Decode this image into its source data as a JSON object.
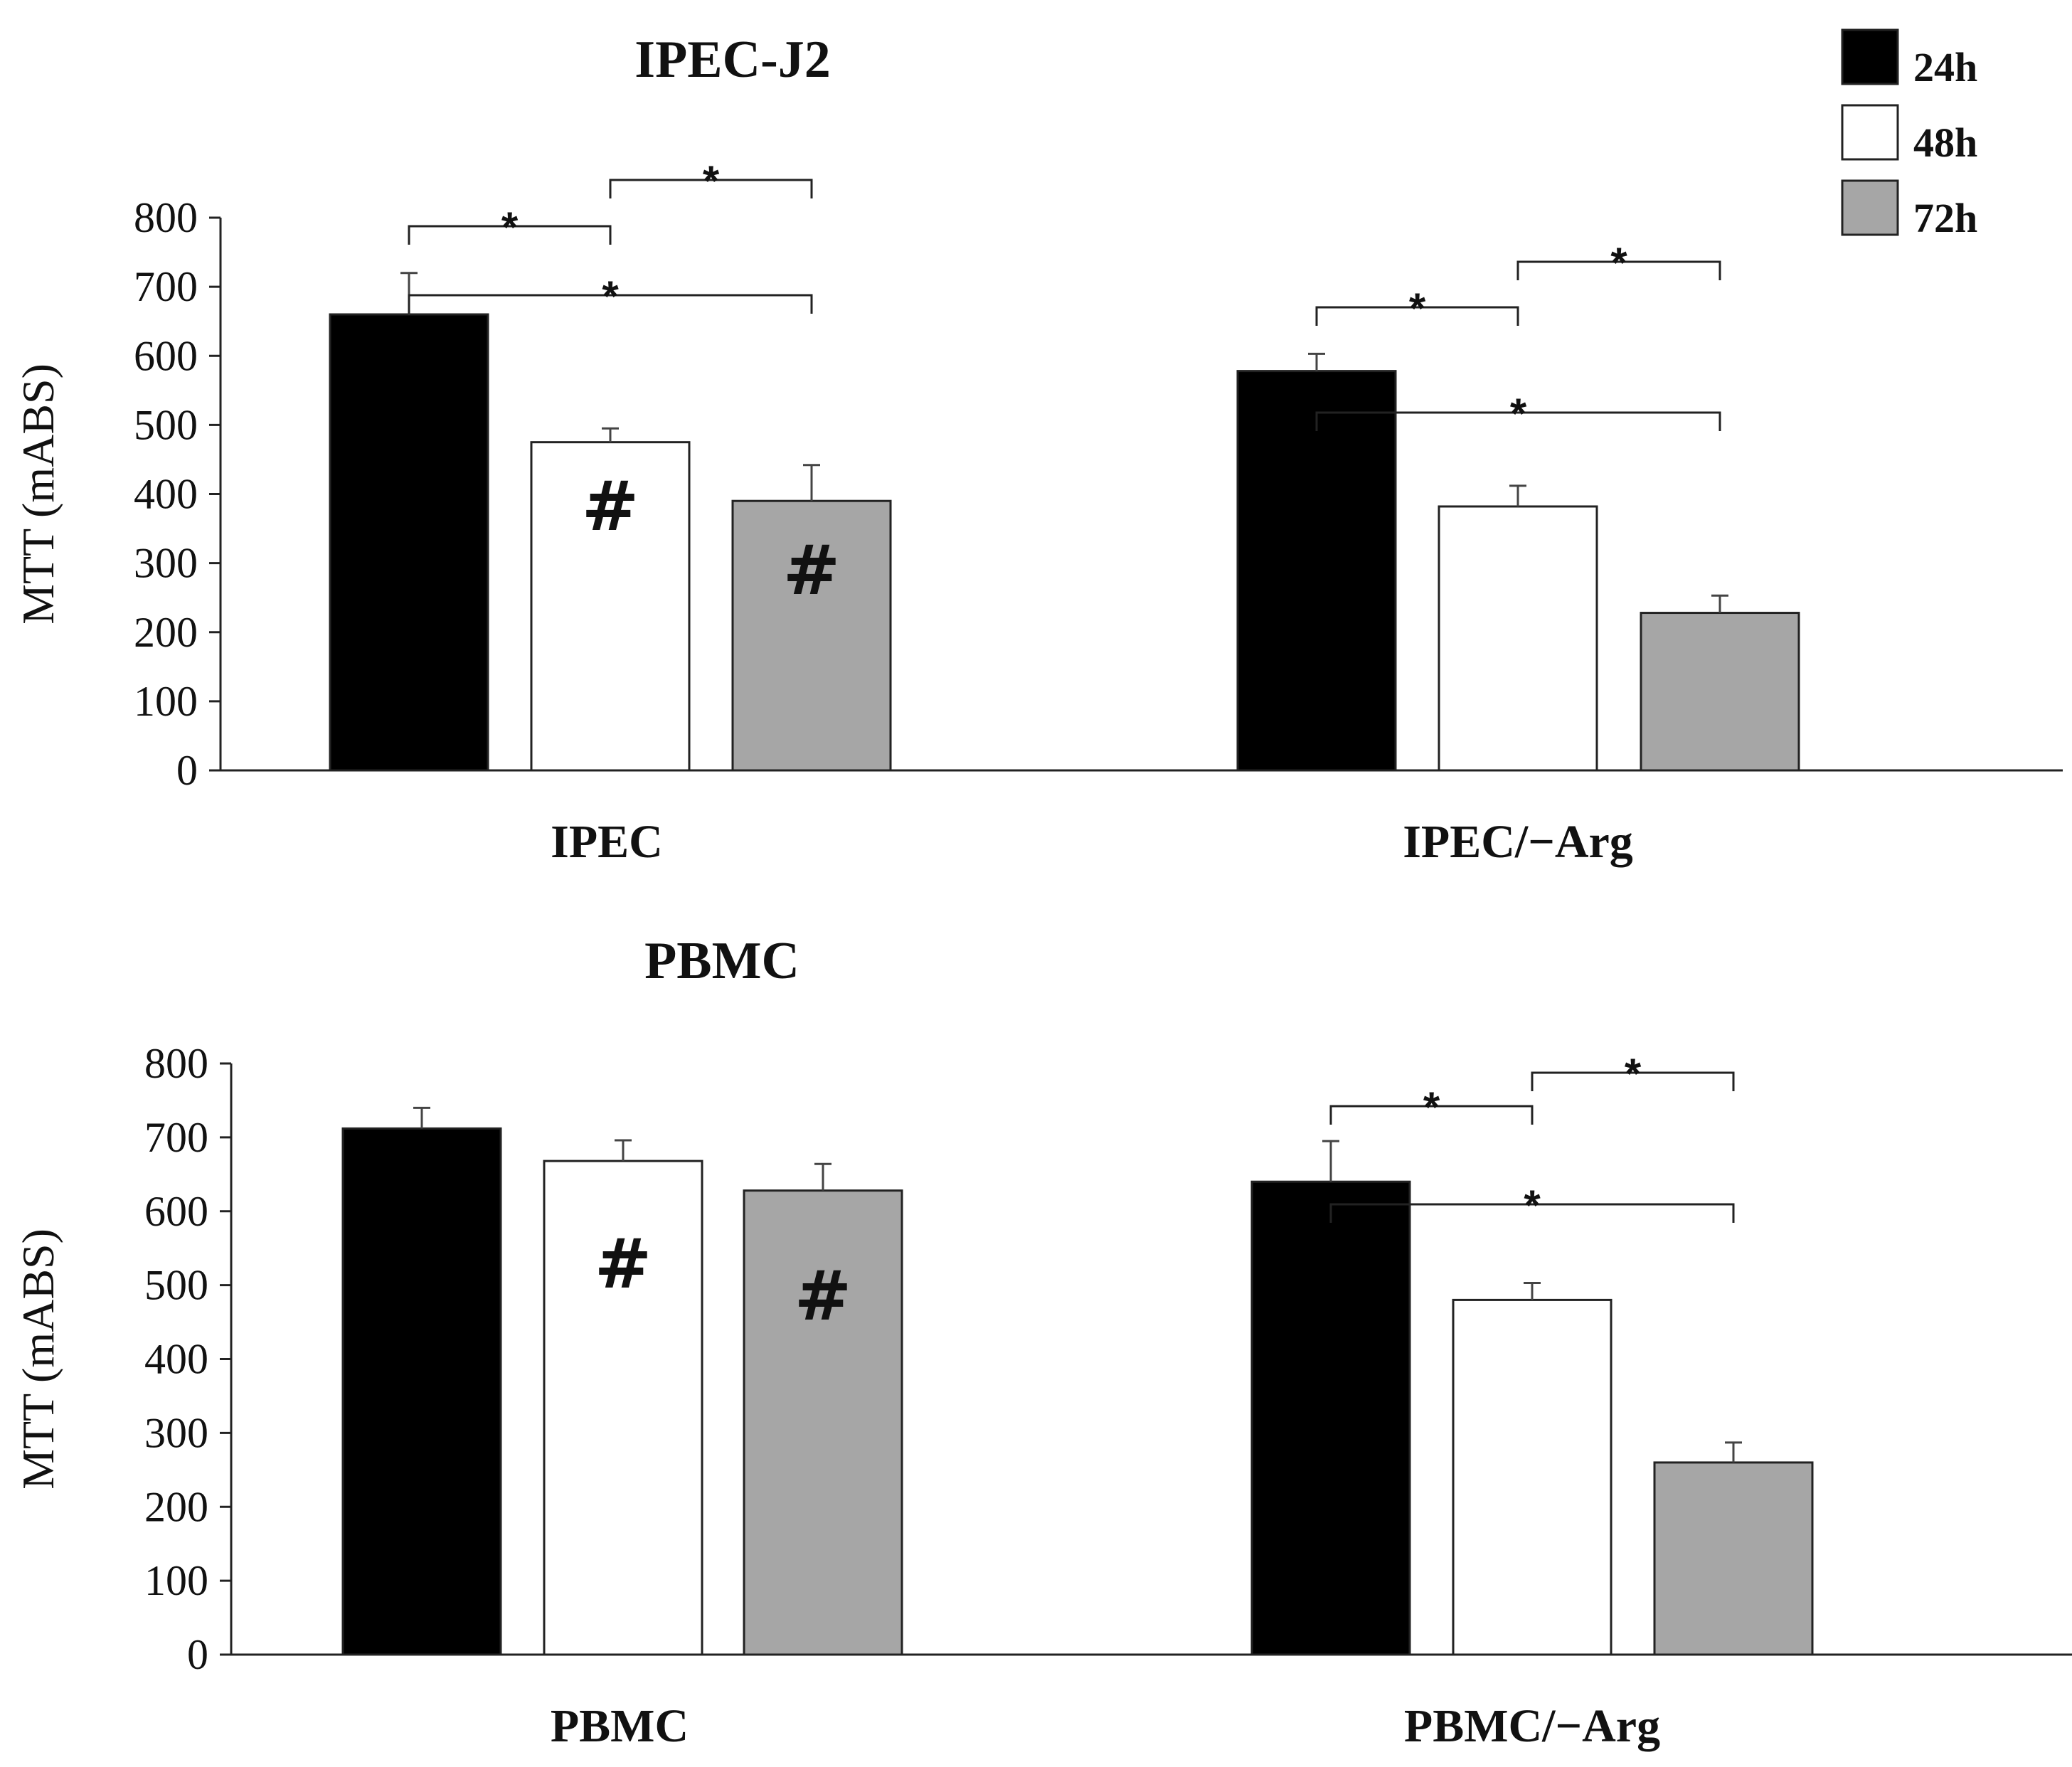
{
  "legend": [
    {
      "label": "24h",
      "color": "#000000"
    },
    {
      "label": "48h",
      "color": "#ffffff"
    },
    {
      "label": "72h",
      "color": "#a6a6a6"
    }
  ],
  "chart_data": [
    {
      "type": "bar",
      "title": "IPEC-J2",
      "ylabel": "MTT (mABS)",
      "xlabel": "",
      "ylim": [
        0,
        800
      ],
      "yticks": [
        0,
        100,
        200,
        300,
        400,
        500,
        600,
        700,
        800
      ],
      "categories": [
        "IPEC",
        "IPEC/−Arg"
      ],
      "series": [
        {
          "name": "24h",
          "color": "#000000",
          "values": [
            660,
            578
          ],
          "errors": [
            60,
            25
          ]
        },
        {
          "name": "48h",
          "color": "#ffffff",
          "values": [
            475,
            382
          ],
          "errors": [
            20,
            30
          ]
        },
        {
          "name": "72h",
          "color": "#a6a6a6",
          "values": [
            390,
            228
          ],
          "errors": [
            52,
            25
          ]
        }
      ],
      "significance": [
        {
          "group": 0,
          "from": 0,
          "to": 2,
          "label": "*",
          "level": 2
        },
        {
          "group": 0,
          "from": 0,
          "to": 1,
          "label": "*",
          "level": 1
        },
        {
          "group": 0,
          "from": 1,
          "to": 2,
          "label": "*",
          "level": 0
        },
        {
          "group": 1,
          "from": 0,
          "to": 2,
          "label": "*",
          "level": 2
        },
        {
          "group": 1,
          "from": 0,
          "to": 1,
          "label": "*",
          "level": 1
        },
        {
          "group": 1,
          "from": 1,
          "to": 2,
          "label": "*",
          "level": 0
        }
      ],
      "markers": [
        {
          "group": 0,
          "series": 1,
          "label": "#"
        },
        {
          "group": 0,
          "series": 2,
          "label": "#"
        }
      ]
    },
    {
      "type": "bar",
      "title": "PBMC",
      "ylabel": "MTT (mABS)",
      "xlabel": "",
      "ylim": [
        0,
        800
      ],
      "yticks": [
        0,
        100,
        200,
        300,
        400,
        500,
        600,
        700,
        800
      ],
      "categories": [
        "PBMC",
        "PBMC/−Arg"
      ],
      "series": [
        {
          "name": "24h",
          "color": "#000000",
          "values": [
            712,
            640
          ],
          "errors": [
            28,
            55
          ]
        },
        {
          "name": "48h",
          "color": "#ffffff",
          "values": [
            668,
            480
          ],
          "errors": [
            28,
            23
          ]
        },
        {
          "name": "72h",
          "color": "#a6a6a6",
          "values": [
            628,
            260
          ],
          "errors": [
            36,
            27
          ]
        }
      ],
      "significance": [
        {
          "group": 1,
          "from": 0,
          "to": 2,
          "label": "*",
          "level": 2
        },
        {
          "group": 1,
          "from": 0,
          "to": 1,
          "label": "*",
          "level": 1
        },
        {
          "group": 1,
          "from": 1,
          "to": 2,
          "label": "*",
          "level": 0
        }
      ],
      "markers": [
        {
          "group": 0,
          "series": 1,
          "label": "#"
        },
        {
          "group": 0,
          "series": 2,
          "label": "#"
        }
      ]
    }
  ]
}
